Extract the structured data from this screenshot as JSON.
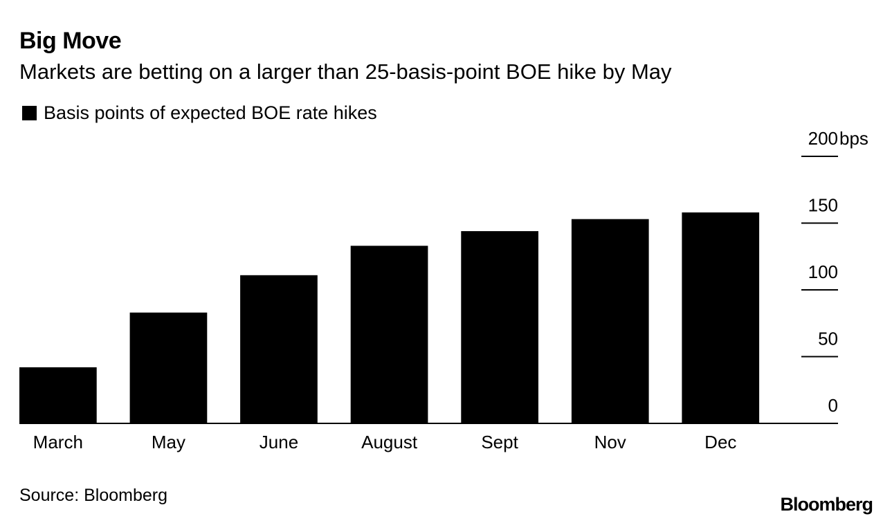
{
  "header": {
    "title": "Big Move",
    "subtitle": "Markets are betting on a larger than 25-basis-point BOE hike by May"
  },
  "legend": {
    "label": "Basis points of expected BOE rate hikes"
  },
  "footer": {
    "source": "Source: Bloomberg",
    "logo": "Bloomberg"
  },
  "colors": {
    "bar": "#000000",
    "axis": "#000000",
    "background": "#ffffff"
  },
  "chart_data": {
    "type": "bar",
    "title": "Big Move",
    "subtitle": "Markets are betting on a larger than 25-basis-point BOE hike by May",
    "xlabel": "",
    "ylabel": "Basis points of expected BOE rate hikes",
    "categories": [
      "March",
      "May",
      "June",
      "August",
      "Sept",
      "Nov",
      "Dec"
    ],
    "values": [
      42,
      83,
      111,
      133,
      144,
      153,
      158
    ],
    "ylim": [
      0,
      200
    ],
    "yticks": [
      0,
      50,
      100,
      150,
      200
    ],
    "ytick_labels": [
      "0",
      "50",
      "100",
      "150",
      "200"
    ],
    "y_unit": "bps",
    "y_axis_side": "right",
    "legend_position": "top-left",
    "grid": false
  }
}
